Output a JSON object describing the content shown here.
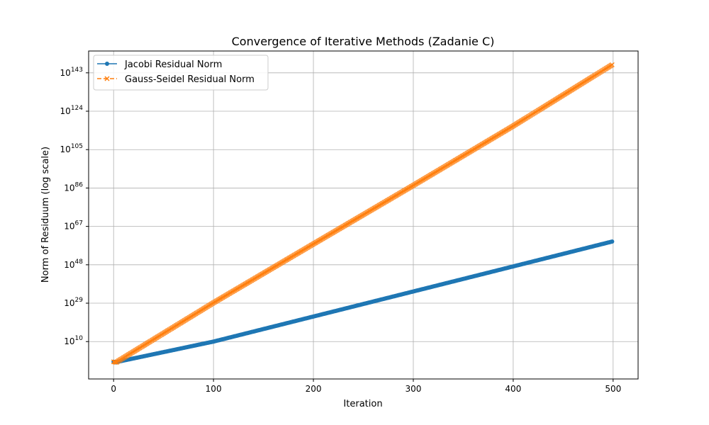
{
  "chart_data": {
    "type": "line",
    "title": "Convergence of Iterative Methods (Zadanie C)",
    "xlabel": "Iteration",
    "ylabel": "Norm of Residuum (log scale)",
    "yscale": "log",
    "xlim": [
      -25,
      525
    ],
    "ylim_log10": [
      -8.5,
      153.8
    ],
    "xticks": [
      0,
      100,
      200,
      300,
      400,
      500
    ],
    "yticks_exponent": [
      10,
      29,
      48,
      67,
      86,
      105,
      124,
      143
    ],
    "grid": true,
    "legend_position": "upper left",
    "series": [
      {
        "name": "Jacobi Residual Norm",
        "color": "#1f77b4",
        "linestyle": "solid",
        "marker": "circle",
        "x_range": [
          0,
          499
        ],
        "log10_points": [
          [
            0,
            0.0
          ],
          [
            3,
            -0.3
          ],
          [
            5,
            0.1
          ],
          [
            100,
            10.0
          ],
          [
            200,
            22.4
          ],
          [
            300,
            34.8
          ],
          [
            400,
            47.2
          ],
          [
            499,
            59.5
          ]
        ]
      },
      {
        "name": "Gauss-Seidel Residual Norm",
        "color": "#ff7f0e",
        "linestyle": "dashed",
        "marker": "x",
        "x_range": [
          0,
          499
        ],
        "log10_points": [
          [
            0,
            0.0
          ],
          [
            3,
            -0.3
          ],
          [
            5,
            0.5
          ],
          [
            100,
            29.2
          ],
          [
            200,
            58.3
          ],
          [
            300,
            87.3
          ],
          [
            400,
            116.7
          ],
          [
            499,
            147.0
          ]
        ]
      }
    ]
  }
}
